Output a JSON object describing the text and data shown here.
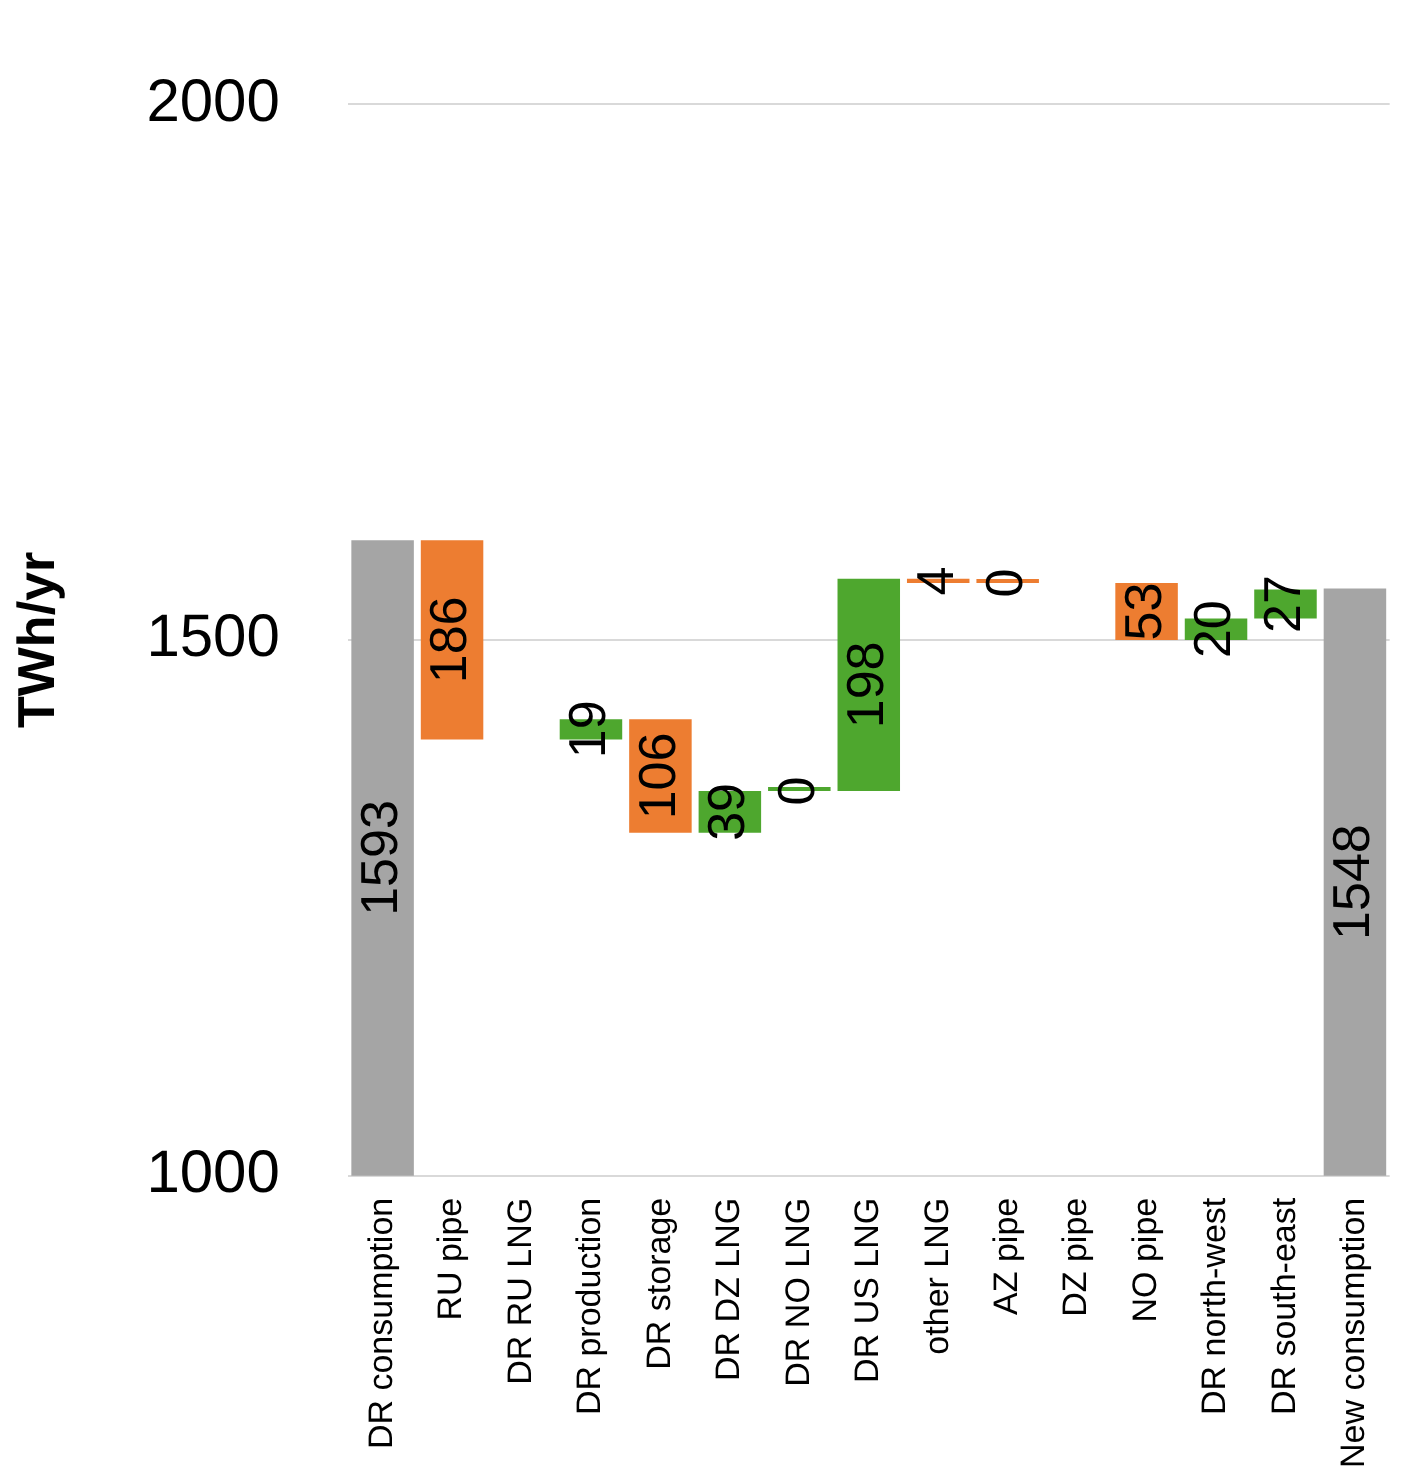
{
  "chart_data": {
    "type": "bar",
    "ylabel": "TWh/yr",
    "categories": [
      "DR consumption",
      "RU pipe",
      "DR RU LNG",
      "DR production",
      "DR storage",
      "DR DZ LNG",
      "DR NO LNG",
      "DR US LNG",
      "other LNG",
      "AZ pipe",
      "DZ pipe",
      "NO pipe",
      "DR north-west",
      "DR south-east",
      "New consumption"
    ],
    "values": [
      1593,
      186,
      null,
      19,
      106,
      39,
      0,
      198,
      4,
      0,
      null,
      53,
      20,
      27,
      1548
    ],
    "base": [
      null,
      1407,
      null,
      1407,
      1320,
      1320,
      1359,
      1359,
      1553,
      1553,
      null,
      1500,
      1500,
      1520,
      null
    ],
    "colors": [
      "#a5a5a5",
      "#ed7d31",
      "#a5a5a5",
      "#4ea72e",
      "#ed7d31",
      "#4ea72e",
      "#4ea72e",
      "#4ea72e",
      "#ed7d31",
      "#ed7d31",
      "#a5a5a5",
      "#ed7d31",
      "#4ea72e",
      "#4ea72e",
      "#a5a5a5"
    ],
    "value_labels": [
      "1593",
      "186",
      null,
      "19",
      "106",
      "39",
      "0",
      "198",
      "4",
      "0",
      null,
      "53",
      "20",
      "27",
      "1548"
    ],
    "ylim": [
      1000,
      2000
    ],
    "yticks": [
      1000,
      1500,
      2000
    ],
    "grid": "y"
  }
}
